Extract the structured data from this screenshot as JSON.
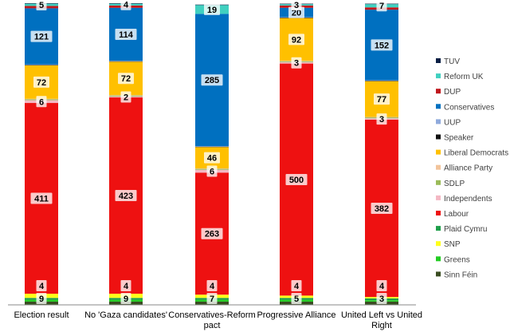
{
  "chart_data": {
    "type": "bar",
    "stacked": true,
    "categories": [
      "Election result",
      "No 'Gaza candidates'",
      "Conservatives-Reform pact",
      "Progressive Alliance",
      "United Left vs United Right"
    ],
    "category_lines": [
      [
        "Election result"
      ],
      [
        "No 'Gaza candidates'"
      ],
      [
        "Conservatives-Reform",
        "pact"
      ],
      [
        "Progressive Alliance"
      ],
      [
        "United Left vs United",
        "Right"
      ]
    ],
    "ylim": [
      0,
      650
    ],
    "legend_position": "right",
    "grid": false,
    "series": [
      {
        "name": "Sinn Féin",
        "color": "#3a4d22",
        "values": [
          7,
          7,
          7,
          7,
          7
        ]
      },
      {
        "name": "Greens",
        "color": "#22cc22",
        "values": [
          4,
          4,
          4,
          4,
          3
        ]
      },
      {
        "name": "Plaid Cymru",
        "color": "#1e9e4a",
        "values": [
          4,
          4,
          4,
          4,
          4
        ]
      },
      {
        "name": "SNP",
        "color": "#ffff1a",
        "values": [
          9,
          9,
          7,
          5,
          3
        ]
      },
      {
        "name": "Greens",
        "color": "#22cc22",
        "values": [
          0,
          0,
          0,
          0,
          0
        ]
      },
      {
        "name": "Labour",
        "color": "#ee1111",
        "values": [
          411,
          423,
          263,
          500,
          382
        ]
      },
      {
        "name": "Independents",
        "color": "#f4b8c4",
        "values": [
          6,
          2,
          6,
          3,
          3
        ]
      },
      {
        "name": "SDLP",
        "color": "#9bbb59",
        "values": [
          2,
          2,
          2,
          2,
          2
        ]
      },
      {
        "name": "Alliance Party",
        "color": "#f2c49b",
        "values": [
          1,
          1,
          1,
          1,
          1
        ]
      },
      {
        "name": "Liberal Democrats",
        "color": "#ffc000",
        "values": [
          72,
          72,
          46,
          92,
          77
        ]
      },
      {
        "name": "Speaker",
        "color": "#111111",
        "values": [
          1,
          1,
          1,
          1,
          1
        ]
      },
      {
        "name": "UUP",
        "color": "#8faadc",
        "values": [
          1,
          1,
          1,
          1,
          1
        ]
      },
      {
        "name": "Conservatives",
        "color": "#0070c0",
        "values": [
          121,
          114,
          285,
          20,
          152
        ]
      },
      {
        "name": "DUP",
        "color": "#c0171c",
        "values": [
          5,
          5,
          0,
          5,
          5
        ]
      },
      {
        "name": "Reform UK",
        "color": "#40d0c0",
        "values": [
          5,
          4,
          19,
          3,
          7
        ]
      },
      {
        "name": "TUV",
        "color": "#0a1f44",
        "values": [
          1,
          1,
          1,
          1,
          1
        ]
      }
    ],
    "data_labels": [
      [
        {
          "series": 3,
          "text": "9"
        },
        {
          "series": 2,
          "text": "4"
        },
        {
          "series": 5,
          "text": "411"
        },
        {
          "series": 6,
          "text": "6"
        },
        {
          "series": 9,
          "text": "72"
        },
        {
          "series": 12,
          "text": "121"
        },
        {
          "series": 14,
          "text": "5"
        }
      ],
      [
        {
          "series": 3,
          "text": "9"
        },
        {
          "series": 2,
          "text": "4"
        },
        {
          "series": 5,
          "text": "423"
        },
        {
          "series": 6,
          "text": "2"
        },
        {
          "series": 9,
          "text": "72"
        },
        {
          "series": 12,
          "text": "114"
        },
        {
          "series": 14,
          "text": "4"
        }
      ],
      [
        {
          "series": 3,
          "text": "7"
        },
        {
          "series": 2,
          "text": "4"
        },
        {
          "series": 5,
          "text": "263"
        },
        {
          "series": 6,
          "text": "6"
        },
        {
          "series": 9,
          "text": "46"
        },
        {
          "series": 12,
          "text": "285"
        },
        {
          "series": 14,
          "text": "19"
        }
      ],
      [
        {
          "series": 3,
          "text": "5"
        },
        {
          "series": 2,
          "text": "4"
        },
        {
          "series": 5,
          "text": "500"
        },
        {
          "series": 6,
          "text": "3"
        },
        {
          "series": 9,
          "text": "92"
        },
        {
          "series": 12,
          "text": "20"
        },
        {
          "series": 14,
          "text": "3"
        }
      ],
      [
        {
          "series": 3,
          "text": "3"
        },
        {
          "series": 2,
          "text": "4"
        },
        {
          "series": 5,
          "text": "382"
        },
        {
          "series": 6,
          "text": "3"
        },
        {
          "series": 9,
          "text": "77"
        },
        {
          "series": 12,
          "text": "152"
        },
        {
          "series": 14,
          "text": "7"
        }
      ]
    ],
    "legend": [
      {
        "name": "TUV",
        "color": "#0a1f44"
      },
      {
        "name": "Reform UK",
        "color": "#40d0c0"
      },
      {
        "name": "DUP",
        "color": "#c0171c"
      },
      {
        "name": "Conservatives",
        "color": "#0070c0"
      },
      {
        "name": "UUP",
        "color": "#8faadc"
      },
      {
        "name": "Speaker",
        "color": "#111111"
      },
      {
        "name": "Liberal Democrats",
        "color": "#ffc000"
      },
      {
        "name": "Alliance Party",
        "color": "#f2c49b"
      },
      {
        "name": "SDLP",
        "color": "#9bbb59"
      },
      {
        "name": "Independents",
        "color": "#f4b8c4"
      },
      {
        "name": "Labour",
        "color": "#ee1111"
      },
      {
        "name": "Plaid Cymru",
        "color": "#1e9e4a"
      },
      {
        "name": "SNP",
        "color": "#ffff1a"
      },
      {
        "name": "Greens",
        "color": "#22cc22"
      },
      {
        "name": "Sinn Féin",
        "color": "#3a4d22"
      }
    ]
  }
}
